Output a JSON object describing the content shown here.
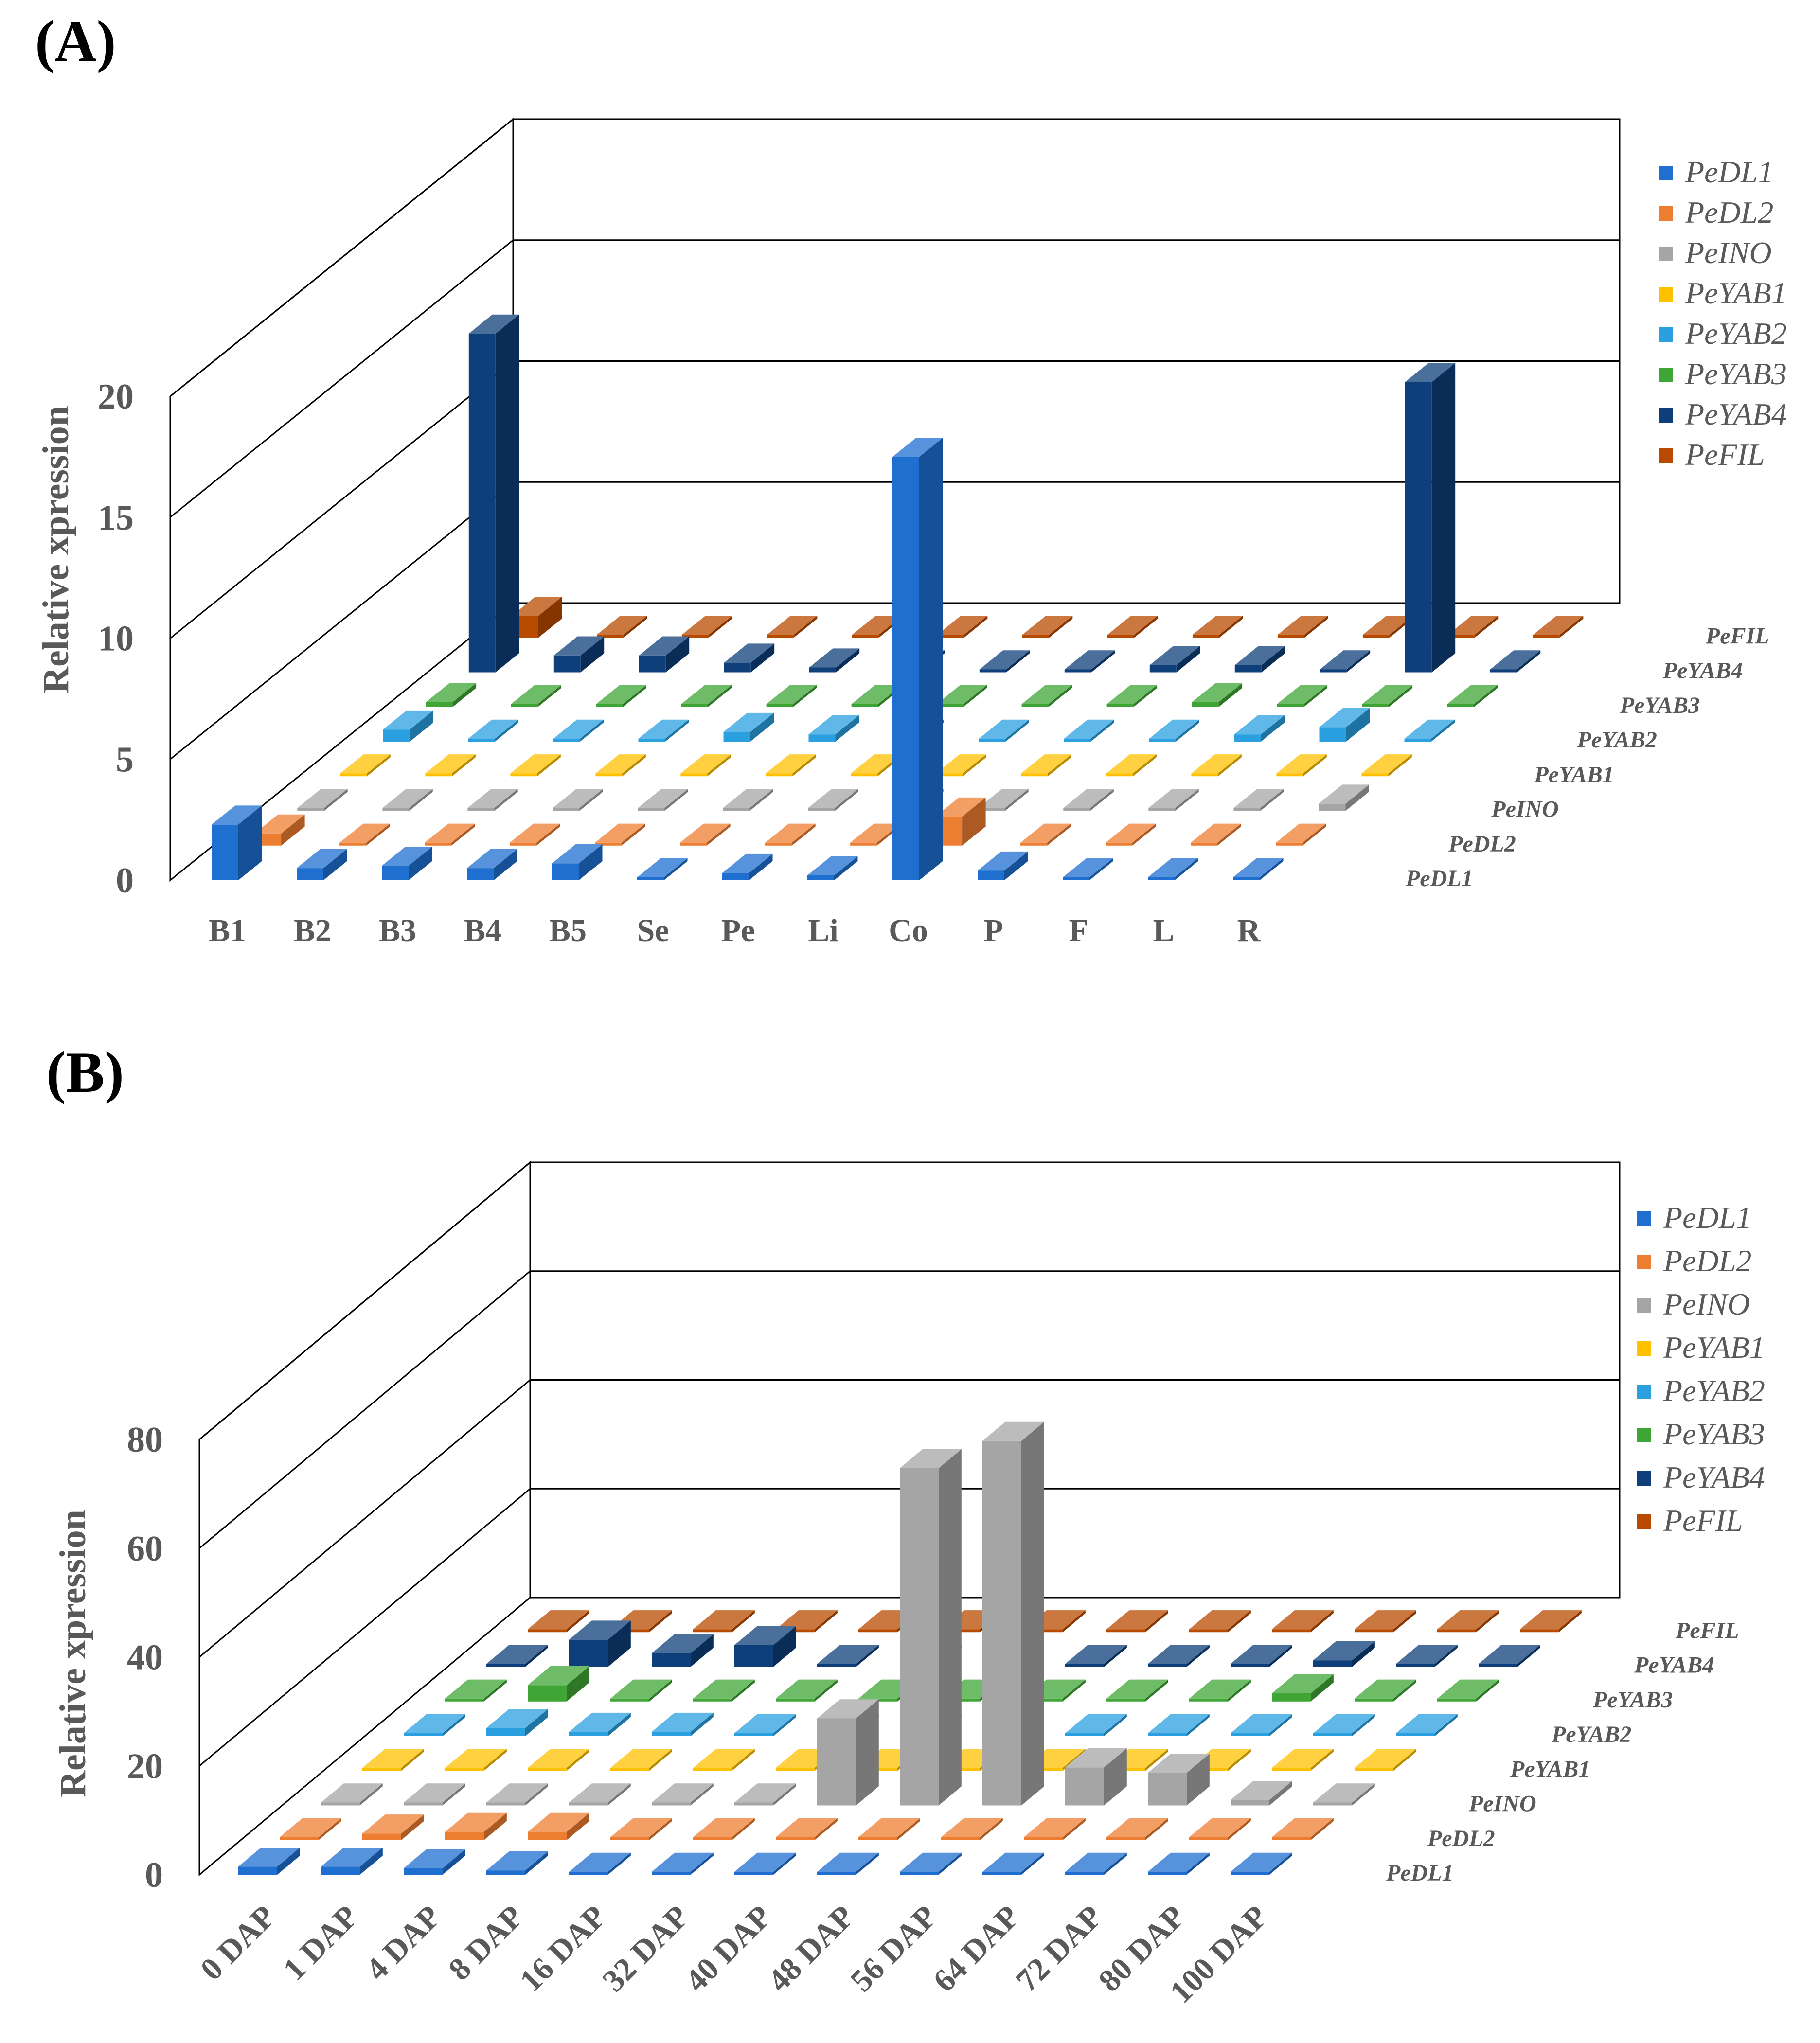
{
  "colors": {
    "PeDL1": "#1F6FD0",
    "PeDL2": "#ED7D31",
    "PeINO": "#A5A5A5",
    "PeYAB1": "#FFC000",
    "PeYAB2": "#2AA0E0",
    "PeYAB3": "#3FA535",
    "PeYAB4": "#0E3F7A",
    "PeFIL": "#B84A00"
  },
  "chart_data": [
    {
      "type": "bar",
      "subtype": "3d-column",
      "panel_label": "(A)",
      "title": "",
      "xlabel": "",
      "ylabel": "Relative xpression",
      "ylim": [
        0,
        20
      ],
      "yticks": [
        0,
        5,
        10,
        15,
        20
      ],
      "categories": [
        "B1",
        "B2",
        "B3",
        "B4",
        "B5",
        "Se",
        "Pe",
        "Li",
        "Co",
        "P",
        "F",
        "L",
        "R"
      ],
      "series": [
        {
          "name": "PeDL1",
          "values": [
            2.3,
            0.5,
            0.6,
            0.5,
            0.7,
            0.1,
            0.3,
            0.2,
            17.5,
            0.4,
            0.0,
            0.0,
            0.0
          ]
        },
        {
          "name": "PeDL2",
          "values": [
            0.5,
            0.0,
            0.0,
            0.0,
            0.0,
            0.0,
            0.0,
            0.0,
            1.2,
            0.0,
            0.0,
            0.0,
            0.0
          ]
        },
        {
          "name": "PeINO",
          "values": [
            0.0,
            0.0,
            0.0,
            0.0,
            0.0,
            0.0,
            0.0,
            0.0,
            0.0,
            0.0,
            0.0,
            0.0,
            0.3
          ]
        },
        {
          "name": "PeYAB1",
          "values": [
            0.0,
            0.0,
            0.0,
            0.0,
            0.0,
            0.0,
            0.0,
            0.0,
            0.0,
            0.0,
            0.0,
            0.0,
            0.0
          ]
        },
        {
          "name": "PeYAB2",
          "values": [
            0.5,
            0.0,
            0.1,
            0.0,
            0.4,
            0.3,
            0.0,
            0.0,
            0.0,
            0.0,
            0.3,
            0.6,
            0.0
          ]
        },
        {
          "name": "PeYAB3",
          "values": [
            0.2,
            0.0,
            0.0,
            0.0,
            0.0,
            0.0,
            0.0,
            0.0,
            0.0,
            0.2,
            0.0,
            0.0,
            0.0
          ]
        },
        {
          "name": "PeYAB4",
          "values": [
            14.0,
            0.7,
            0.7,
            0.4,
            0.2,
            0.0,
            0.0,
            0.0,
            0.3,
            0.3,
            0.0,
            12.0,
            0.0
          ]
        },
        {
          "name": "PeFIL",
          "values": [
            0.9,
            0.0,
            0.0,
            0.0,
            0.0,
            0.0,
            0.0,
            0.0,
            0.0,
            0.0,
            0.0,
            0.0,
            0.1
          ]
        }
      ],
      "legend": [
        "PeDL1",
        "PeDL2",
        "PeINO",
        "PeYAB1",
        "PeYAB2",
        "PeYAB3",
        "PeYAB4",
        "PeFIL"
      ],
      "depth_labels": [
        "PeFIL",
        "PeYAB4",
        "PeYAB3",
        "PeYAB2",
        "PeYAB1",
        "PeINO",
        "PeDL2",
        "PeDL1"
      ],
      "grid": true,
      "legend_position": "top-right"
    },
    {
      "type": "bar",
      "subtype": "3d-column",
      "panel_label": "(B)",
      "title": "",
      "xlabel": "",
      "ylabel": "Relative xpression",
      "ylim": [
        0,
        80
      ],
      "yticks": [
        0,
        20,
        40,
        60,
        80
      ],
      "categories": [
        "0 DAP",
        "1 DAP",
        "4 DAP",
        "8 DAP",
        "16 DAP",
        "32 DAP",
        "40 DAP",
        "48 DAP",
        "56 DAP",
        "64 DAP",
        "72 DAP",
        "80 DAP",
        "100 DAP"
      ],
      "series": [
        {
          "name": "PeDL1",
          "values": [
            1.5,
            1.5,
            1.2,
            0.8,
            0,
            0,
            0,
            0,
            0,
            0,
            0,
            0,
            0
          ]
        },
        {
          "name": "PeDL2",
          "values": [
            0,
            1.2,
            1.5,
            1.5,
            0,
            0,
            0,
            0,
            0,
            0,
            0,
            0,
            0
          ]
        },
        {
          "name": "PeINO",
          "values": [
            0,
            0,
            0,
            0,
            0,
            0,
            16,
            62,
            67,
            7,
            6,
            1,
            0
          ]
        },
        {
          "name": "PeYAB1",
          "values": [
            0,
            0,
            0,
            0,
            0,
            0,
            0,
            0,
            0,
            0,
            0,
            0,
            0
          ]
        },
        {
          "name": "PeYAB2",
          "values": [
            0,
            1.5,
            0.8,
            0.8,
            0,
            0,
            0,
            0,
            0,
            0,
            0,
            0,
            0
          ]
        },
        {
          "name": "PeYAB3",
          "values": [
            0,
            3,
            0,
            0,
            0,
            0,
            0,
            0,
            0,
            0,
            1.5,
            0,
            0
          ]
        },
        {
          "name": "PeYAB4",
          "values": [
            0,
            5,
            2.5,
            4,
            0,
            0,
            0,
            0,
            0,
            0,
            1.2,
            0,
            0
          ]
        },
        {
          "name": "PeFIL",
          "values": [
            0,
            0,
            0,
            0,
            0,
            0,
            0,
            0,
            0,
            0,
            0,
            0,
            0
          ]
        }
      ],
      "legend": [
        "PeDL1",
        "PeDL2",
        "PeINO",
        "PeYAB1",
        "PeYAB2",
        "PeYAB3",
        "PeYAB4",
        "PeFIL"
      ],
      "depth_labels": [
        "PeFIL",
        "PeYAB4",
        "PeYAB3",
        "PeYAB2",
        "PeYAB1",
        "PeINO",
        "PeDL2",
        "PeDL1"
      ],
      "grid": true,
      "legend_position": "top-right"
    }
  ]
}
